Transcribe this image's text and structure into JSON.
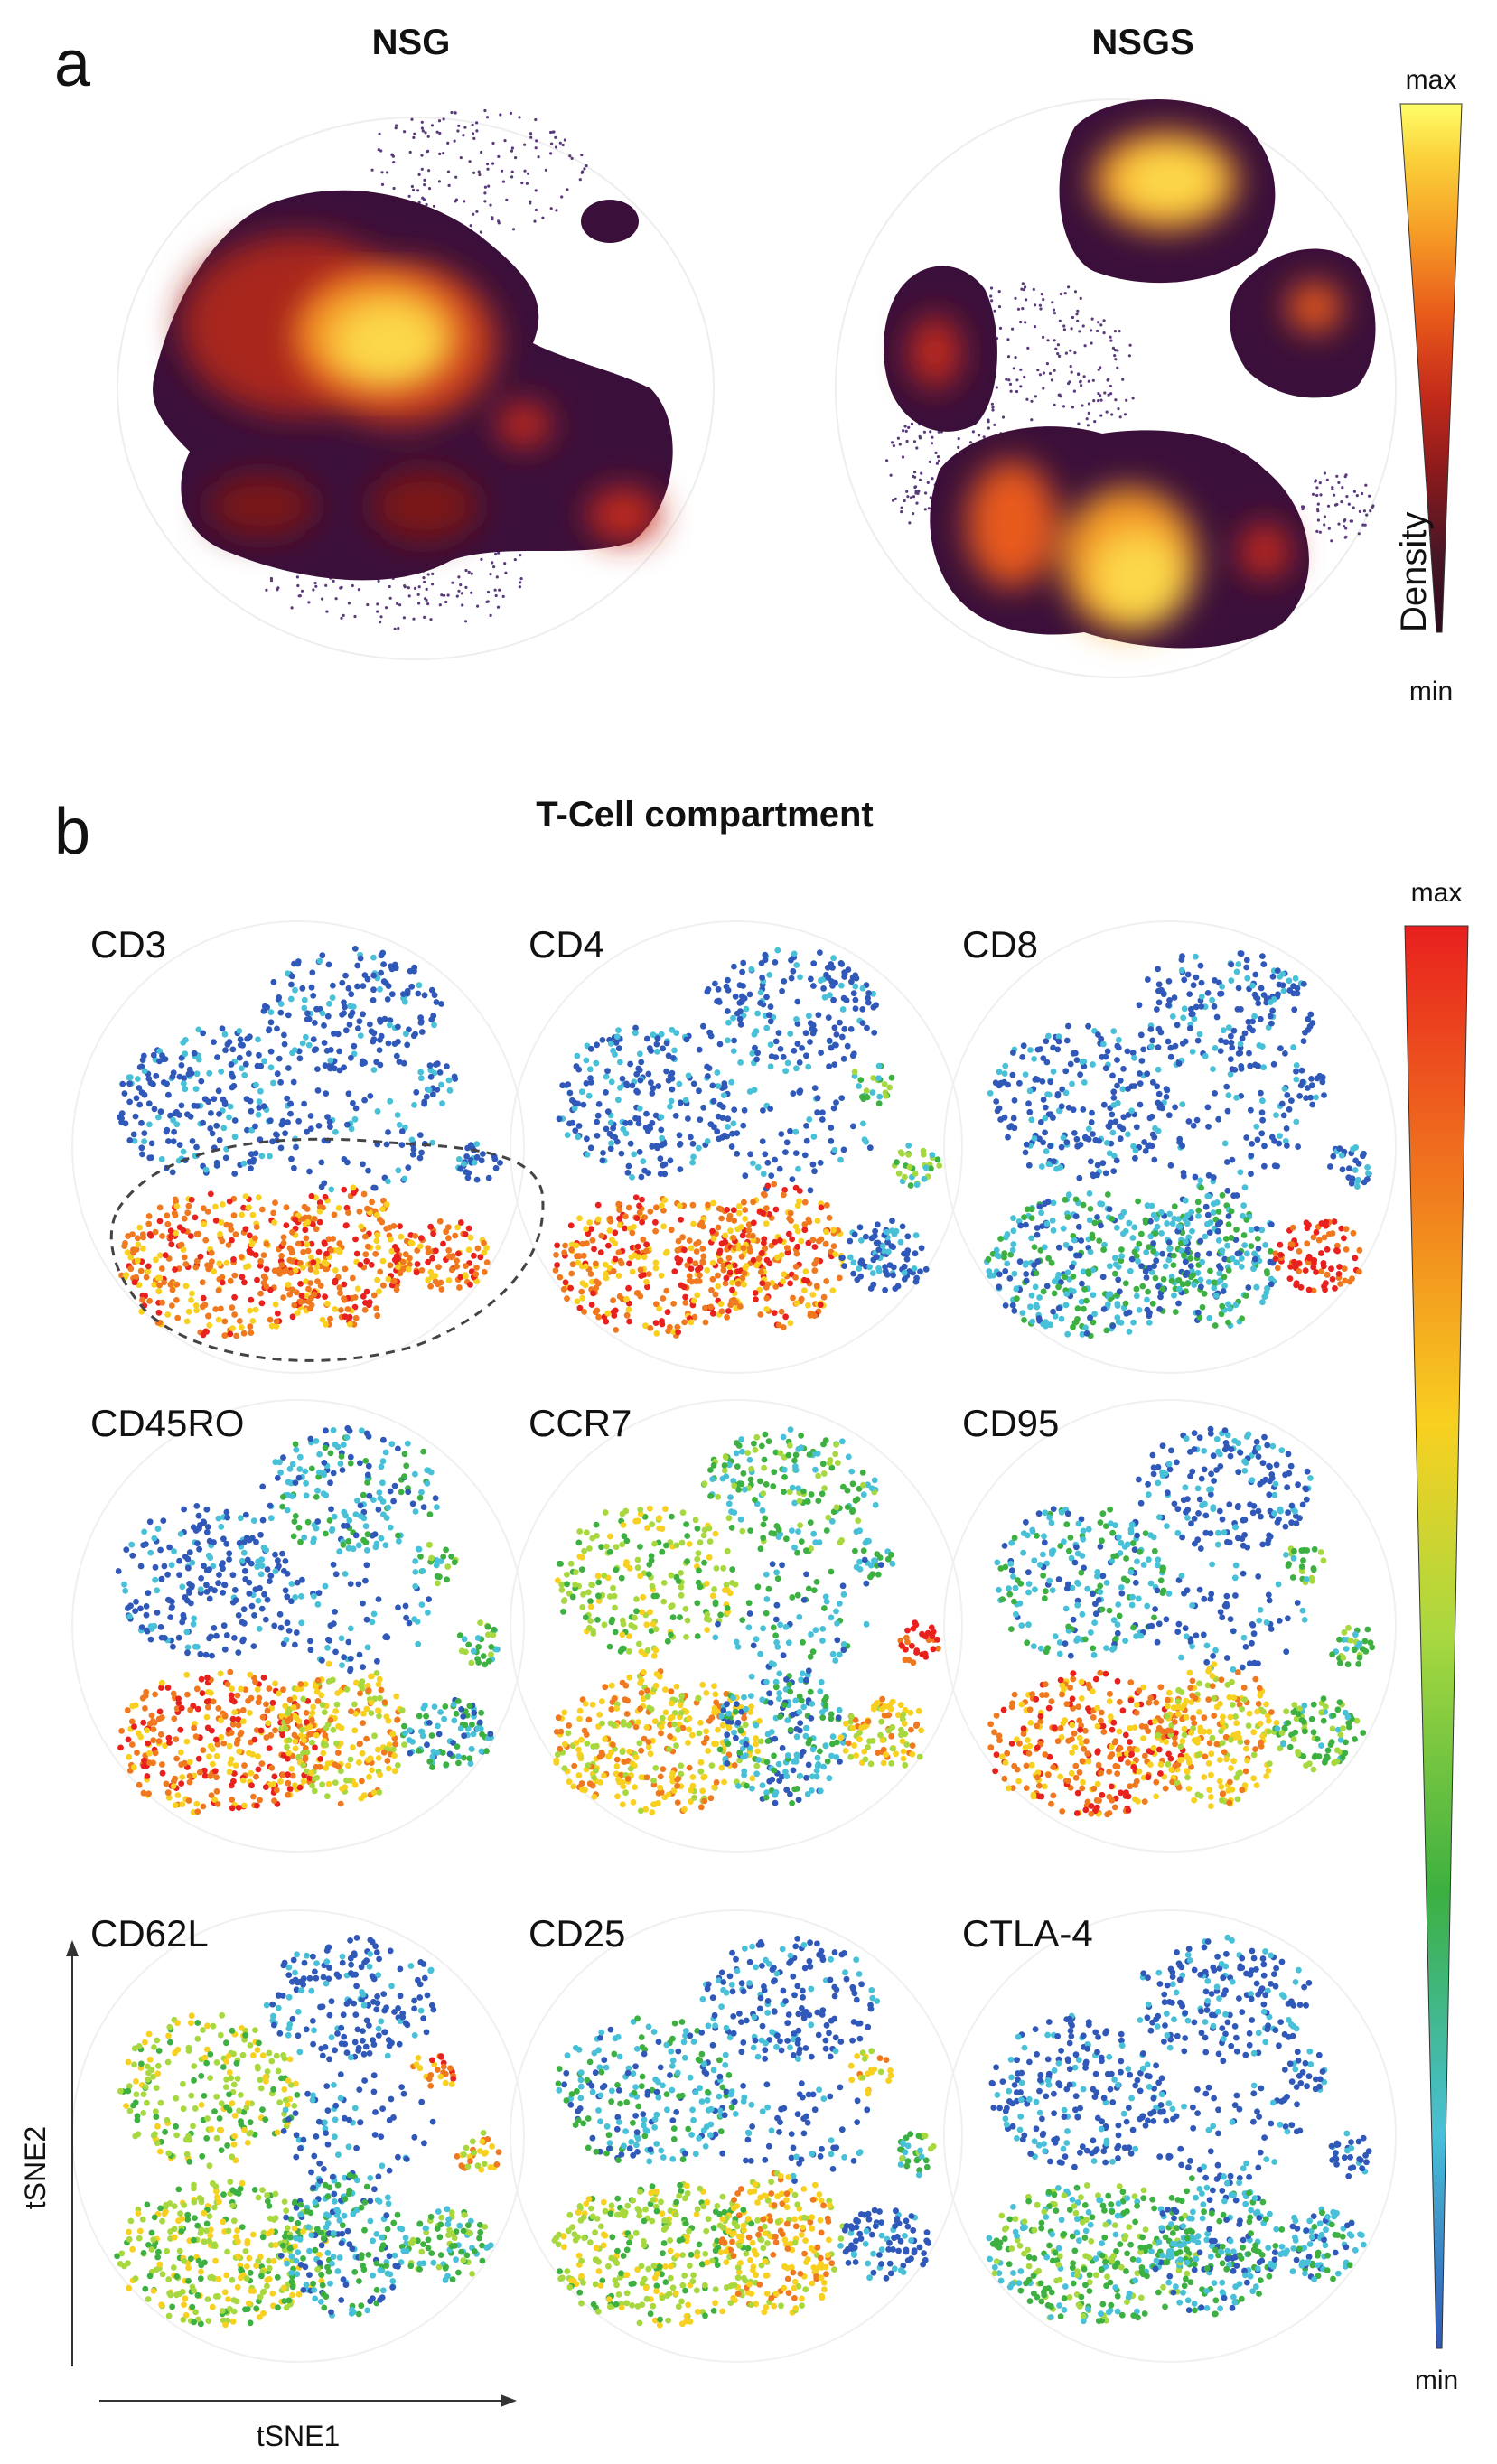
{
  "figure": {
    "panel_a": {
      "letter": "a",
      "plots": [
        {
          "title": "NSG"
        },
        {
          "title": "NSGS"
        }
      ],
      "colorbar": {
        "max_label": "max",
        "min_label": "min",
        "title": "Density",
        "colors": [
          "#2b0a1e",
          "#4a1626",
          "#8a1a1c",
          "#c42b1a",
          "#e85a1a",
          "#f59a25",
          "#fbd23a",
          "#ffff6a"
        ]
      }
    },
    "panel_b": {
      "letter": "b",
      "title": "T-Cell compartment",
      "markers": [
        "CD3",
        "CD4",
        "CD8",
        "CD45RO",
        "CCR7",
        "CD95",
        "CD62L",
        "CD25",
        "CTLA-4"
      ],
      "colorbar": {
        "max_label": "max",
        "min_label": "min",
        "colors": [
          "#e8201e",
          "#f0781e",
          "#f8d020",
          "#a8d840",
          "#3cb040",
          "#48c0d8",
          "#3058b8"
        ]
      },
      "axes": {
        "x_label": "tSNE1",
        "y_label": "tSNE2"
      }
    }
  }
}
